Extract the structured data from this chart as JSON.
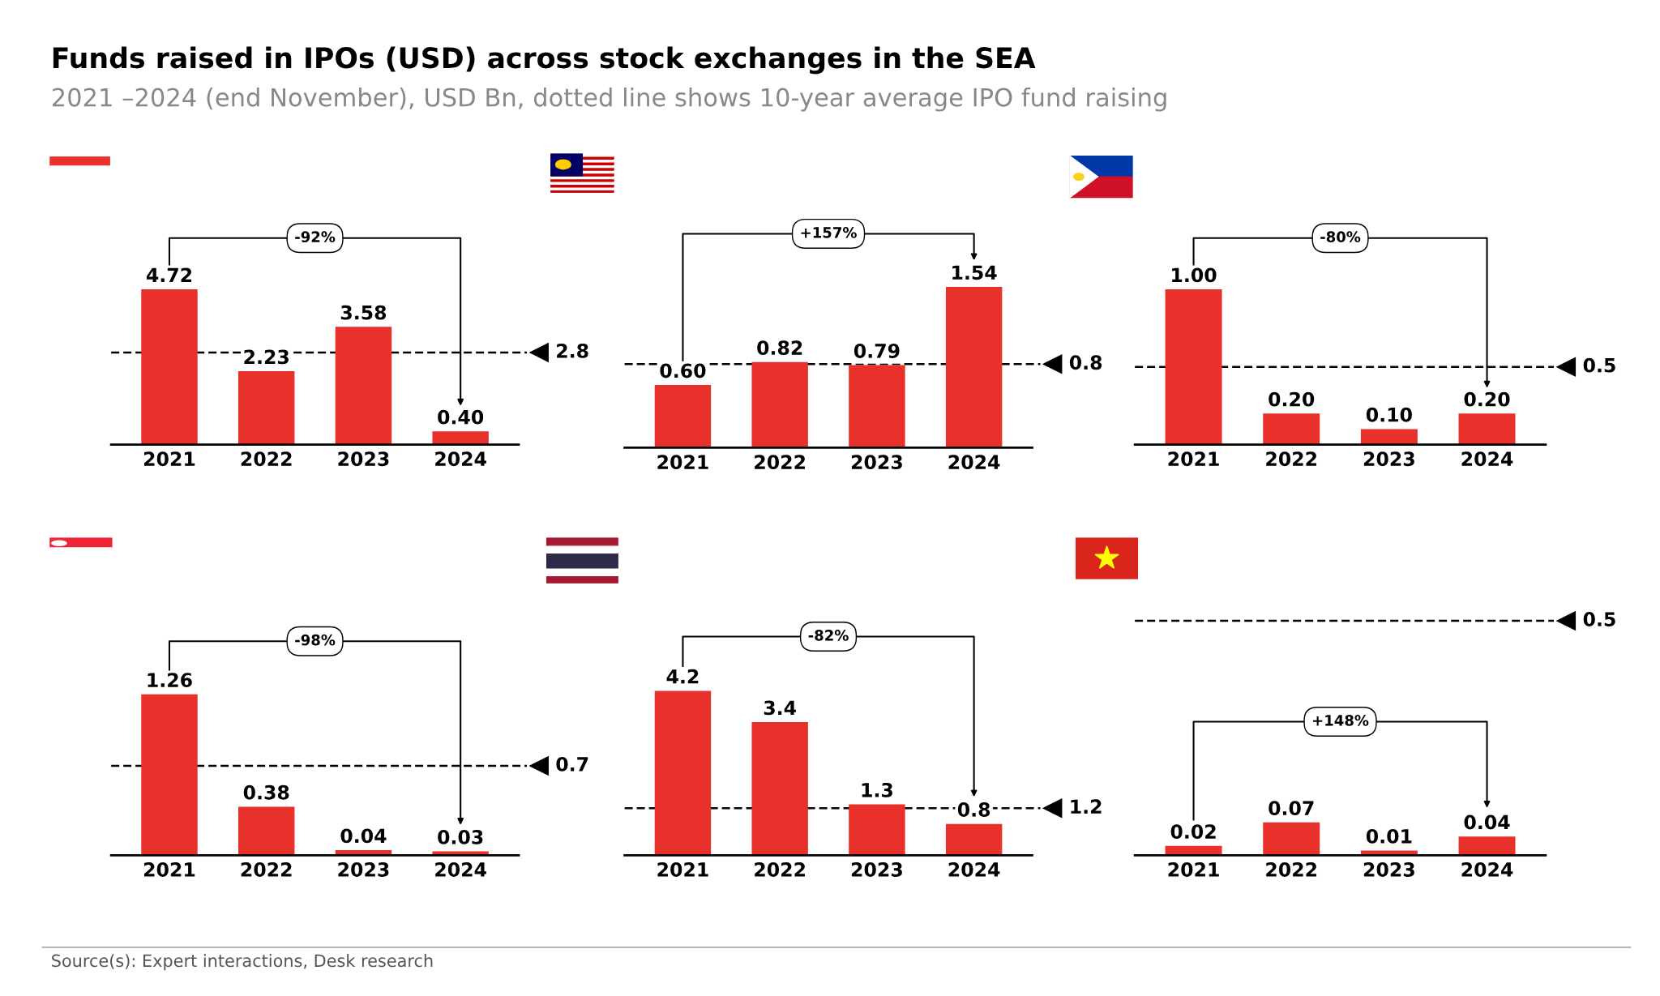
{
  "chart_data": [
    {
      "type": "bar",
      "title": "Funds raised in IPOs (USD) across stock exchanges in the SEA",
      "subtitle": "2021 –2024 (end November), USD Bn, dotted line shows 10-year average IPO fund raising",
      "categories": [
        "2021",
        "2022",
        "2023",
        "2024"
      ],
      "values": [
        4.72,
        2.23,
        3.58,
        0.4
      ],
      "value_labels": [
        "4.72",
        "2.23",
        "3.58",
        "0.40"
      ],
      "color": "#e8312a",
      "ref_lines": [
        {
          "axis": "y",
          "value": 2.8,
          "label": "2.8",
          "line_style": "dashed"
        }
      ],
      "annotations": [
        "-92%"
      ],
      "tick_labels": "x",
      "grid": false,
      "legend": false
    },
    {
      "type": "bar",
      "categories": [
        "2021",
        "2022",
        "2023",
        "2024"
      ],
      "values": [
        0.6,
        0.82,
        0.79,
        1.54
      ],
      "value_labels": [
        "0.60",
        "0.82",
        "0.79",
        "1.54"
      ],
      "color": "#e8312a",
      "ref_lines": [
        {
          "axis": "y",
          "value": 0.8,
          "label": "0.8",
          "line_style": "dashed"
        }
      ],
      "annotations": [
        "+157%"
      ],
      "tick_labels": "x",
      "grid": false,
      "legend": false
    },
    {
      "type": "bar",
      "categories": [
        "2021",
        "2022",
        "2023",
        "2024"
      ],
      "values": [
        1.0,
        0.2,
        0.1,
        0.2
      ],
      "value_labels": [
        "1.00",
        "0.20",
        "0.10",
        "0.20"
      ],
      "color": "#e8312a",
      "ref_lines": [
        {
          "axis": "y",
          "value": 0.5,
          "label": "0.5",
          "line_style": "dashed"
        }
      ],
      "annotations": [
        "-80%"
      ],
      "tick_labels": "x",
      "grid": false,
      "legend": false
    },
    {
      "type": "bar",
      "categories": [
        "2021",
        "2022",
        "2023",
        "2024"
      ],
      "values": [
        1.26,
        0.38,
        0.04,
        0.03
      ],
      "value_labels": [
        "1.26",
        "0.38",
        "0.04",
        "0.03"
      ],
      "color": "#e8312a",
      "ref_lines": [
        {
          "axis": "y",
          "value": 0.7,
          "label": "0.7",
          "line_style": "dashed"
        }
      ],
      "annotations": [
        "-98%"
      ],
      "tick_labels": "x",
      "grid": false,
      "legend": false
    },
    {
      "type": "bar",
      "categories": [
        "2021",
        "2022",
        "2023",
        "2024"
      ],
      "values": [
        4.2,
        3.4,
        1.3,
        0.8
      ],
      "value_labels": [
        "4.2",
        "3.4",
        "1.3",
        "0.8"
      ],
      "color": "#e8312a",
      "ref_lines": [
        {
          "axis": "y",
          "value": 1.2,
          "label": "1.2",
          "line_style": "dashed"
        }
      ],
      "annotations": [
        "-82%"
      ],
      "tick_labels": "x",
      "grid": false,
      "legend": false
    },
    {
      "type": "bar",
      "categories": [
        "2021",
        "2022",
        "2023",
        "2024"
      ],
      "values": [
        0.02,
        0.07,
        0.01,
        0.04
      ],
      "value_labels": [
        "0.02",
        "0.07",
        "0.01",
        "0.04"
      ],
      "color": "#e8312a",
      "ref_lines": [
        {
          "axis": "y",
          "value": 0.5,
          "label": "0.5",
          "line_style": "dashed"
        }
      ],
      "annotations": [
        "+148%",
        "Source(s): Expert interactions, Desk research"
      ],
      "tick_labels": "x",
      "grid": false,
      "legend": false
    }
  ]
}
